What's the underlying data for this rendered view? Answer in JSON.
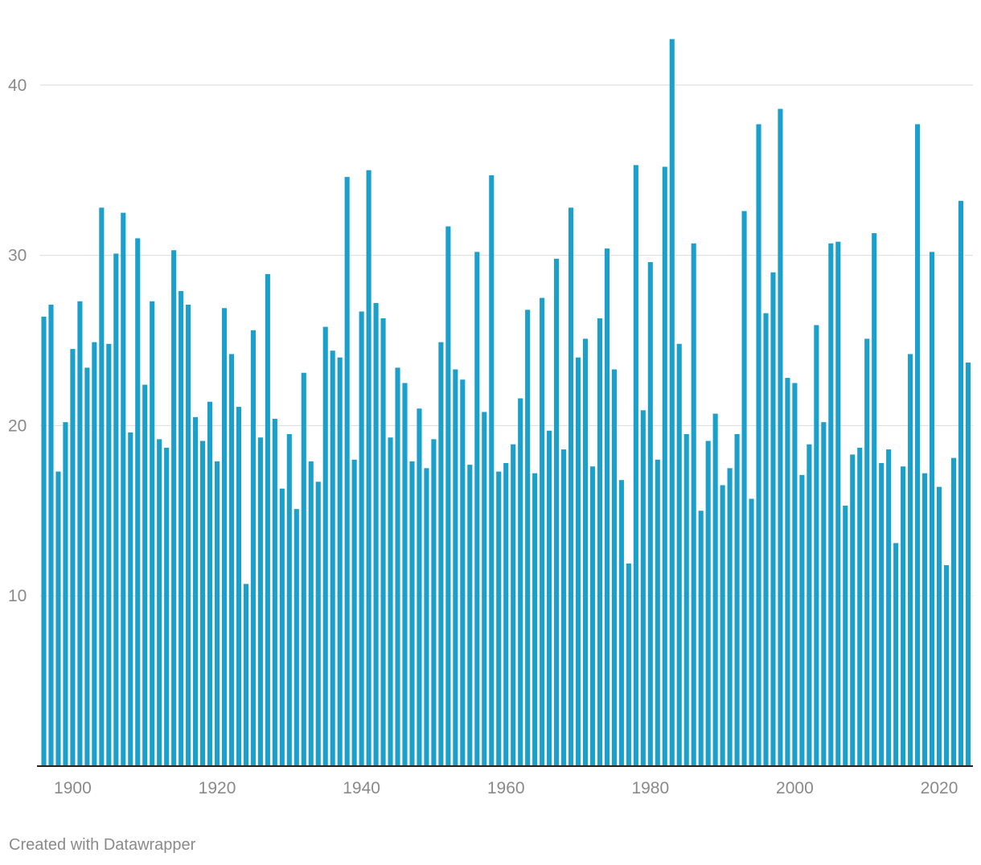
{
  "footer": {
    "credit": "Created with Datawrapper"
  },
  "chart_data": {
    "type": "bar",
    "title": "",
    "xlabel": "",
    "ylabel": "",
    "bar_color": "#1b9fcb",
    "ylim": [
      0,
      43
    ],
    "xlim": [
      1896,
      2024
    ],
    "y_ticks": [
      10,
      20,
      30,
      40
    ],
    "x_ticks": [
      1900,
      1920,
      1940,
      1960,
      1980,
      2000,
      2020
    ],
    "grid": true,
    "x": [
      1896,
      1897,
      1898,
      1899,
      1900,
      1901,
      1902,
      1903,
      1904,
      1905,
      1906,
      1907,
      1908,
      1909,
      1910,
      1911,
      1912,
      1913,
      1914,
      1915,
      1916,
      1917,
      1918,
      1919,
      1920,
      1921,
      1922,
      1923,
      1924,
      1925,
      1926,
      1927,
      1928,
      1929,
      1930,
      1931,
      1932,
      1933,
      1934,
      1935,
      1936,
      1937,
      1938,
      1939,
      1940,
      1941,
      1942,
      1943,
      1944,
      1945,
      1946,
      1947,
      1948,
      1949,
      1950,
      1951,
      1952,
      1953,
      1954,
      1955,
      1956,
      1957,
      1958,
      1959,
      1960,
      1961,
      1962,
      1963,
      1964,
      1965,
      1966,
      1967,
      1968,
      1969,
      1970,
      1971,
      1972,
      1973,
      1974,
      1975,
      1976,
      1977,
      1978,
      1979,
      1980,
      1981,
      1982,
      1983,
      1984,
      1985,
      1986,
      1987,
      1988,
      1989,
      1990,
      1991,
      1992,
      1993,
      1994,
      1995,
      1996,
      1997,
      1998,
      1999,
      2000,
      2001,
      2002,
      2003,
      2004,
      2005,
      2006,
      2007,
      2008,
      2009,
      2010,
      2011,
      2012,
      2013,
      2014,
      2015,
      2016,
      2017,
      2018,
      2019,
      2020,
      2021,
      2022,
      2023,
      2024
    ],
    "values": [
      26.4,
      27.1,
      17.3,
      20.2,
      24.5,
      27.3,
      23.4,
      24.9,
      32.8,
      24.8,
      30.1,
      32.5,
      19.6,
      31.0,
      22.4,
      27.3,
      19.2,
      18.7,
      30.3,
      27.9,
      27.1,
      20.5,
      19.1,
      21.4,
      17.9,
      26.9,
      24.2,
      21.1,
      10.7,
      25.6,
      19.3,
      28.9,
      20.4,
      16.3,
      19.5,
      15.1,
      23.1,
      17.9,
      16.7,
      25.8,
      24.4,
      24.0,
      34.6,
      18.0,
      26.7,
      35.0,
      27.2,
      26.3,
      19.3,
      23.4,
      22.5,
      17.9,
      21.0,
      17.5,
      19.2,
      24.9,
      31.7,
      23.3,
      22.7,
      17.7,
      30.2,
      20.8,
      34.7,
      17.3,
      17.8,
      18.9,
      21.6,
      26.8,
      17.2,
      27.5,
      19.7,
      29.8,
      18.6,
      32.8,
      24.0,
      25.1,
      17.6,
      26.3,
      30.4,
      23.3,
      16.8,
      11.9,
      35.3,
      20.9,
      29.6,
      18.0,
      35.2,
      42.7,
      24.8,
      19.5,
      30.7,
      15.0,
      19.1,
      20.7,
      16.5,
      17.5,
      19.5,
      32.6,
      15.7,
      37.7,
      26.6,
      29.0,
      38.6,
      22.8,
      22.5,
      17.1,
      18.9,
      25.9,
      20.2,
      30.7,
      30.8,
      15.3,
      18.3,
      18.7,
      25.1,
      31.3,
      17.8,
      18.6,
      13.1,
      17.6,
      24.2,
      37.7,
      17.2,
      30.2,
      16.4,
      11.8,
      18.1,
      33.2,
      23.7
    ]
  }
}
